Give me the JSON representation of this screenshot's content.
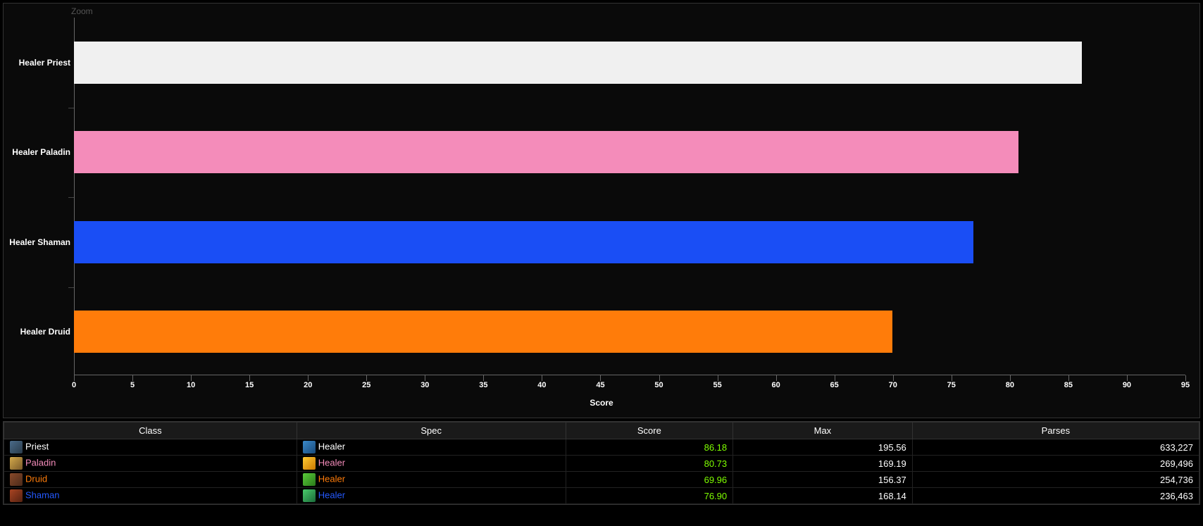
{
  "chart": {
    "zoom_label": "Zoom",
    "type": "bar-horizontal",
    "x_label": "Score",
    "x_min": 0,
    "x_max": 95,
    "x_tick_step": 5,
    "x_ticks": [
      0,
      5,
      10,
      15,
      20,
      25,
      30,
      35,
      40,
      45,
      50,
      55,
      60,
      65,
      70,
      75,
      80,
      85,
      90,
      95
    ],
    "axis_color": "#666666",
    "background_color": "#0a0a0a",
    "label_fontsize": 12,
    "tick_fontsize": 11,
    "bars": [
      {
        "label": "Healer Priest",
        "value": 86.18,
        "color": "#f0f0f0"
      },
      {
        "label": "Healer Paladin",
        "value": 80.73,
        "color": "#f48cba"
      },
      {
        "label": "Healer Shaman",
        "value": 76.9,
        "color": "#1a4ef5"
      },
      {
        "label": "Healer Druid",
        "value": 69.96,
        "color": "#ff7c0a"
      }
    ]
  },
  "table": {
    "columns": [
      "Class",
      "Spec",
      "Score",
      "Max",
      "Parses"
    ],
    "col_widths": [
      "24.5%",
      "22.5%",
      "14%",
      "15%",
      "24%"
    ],
    "header_bg": "#1a1a1a",
    "border_color": "#333333",
    "score_color": "#7fff00",
    "rows": [
      {
        "class_name": "Priest",
        "class_color": "#ffffff",
        "class_icon_bg": "linear-gradient(135deg,#4a6b8a,#2a3b4a)",
        "spec_name": "Healer",
        "spec_color": "#ffffff",
        "spec_icon_bg": "linear-gradient(135deg,#3a8acc,#1a4a7a)",
        "score": "86.18",
        "max": "195.56",
        "parses": "633,227"
      },
      {
        "class_name": "Paladin",
        "class_color": "#f48cba",
        "class_icon_bg": "linear-gradient(135deg,#d4a94a,#7a5a2a)",
        "spec_name": "Healer",
        "spec_color": "#f48cba",
        "spec_icon_bg": "linear-gradient(135deg,#ffcc33,#cc7700)",
        "score": "80.73",
        "max": "169.19",
        "parses": "269,496"
      },
      {
        "class_name": "Druid",
        "class_color": "#ff7c0a",
        "class_icon_bg": "linear-gradient(135deg,#8a4a2a,#4a2a1a)",
        "spec_name": "Healer",
        "spec_color": "#ff7c0a",
        "spec_icon_bg": "linear-gradient(135deg,#5acc3a,#2a7a1a)",
        "score": "69.96",
        "max": "156.37",
        "parses": "254,736"
      },
      {
        "class_name": "Shaman",
        "class_color": "#2459ff",
        "class_icon_bg": "linear-gradient(135deg,#aa4422,#552211)",
        "spec_name": "Healer",
        "spec_color": "#2459ff",
        "spec_icon_bg": "linear-gradient(135deg,#4acc6a,#1a6a3a)",
        "score": "76.90",
        "max": "168.14",
        "parses": "236,463"
      }
    ]
  }
}
